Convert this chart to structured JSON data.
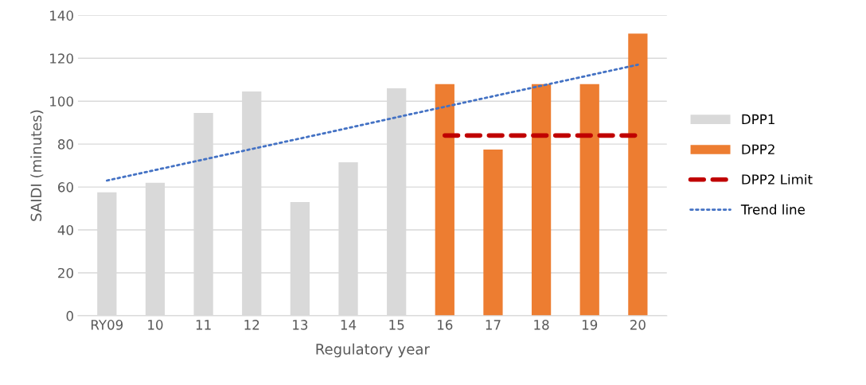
{
  "chart_data": {
    "type": "bar",
    "xlabel": "Regulatory year",
    "ylabel": "SAIDI (minutes)",
    "categories": [
      "RY09",
      "10",
      "11",
      "12",
      "13",
      "14",
      "15",
      "16",
      "17",
      "18",
      "19",
      "20"
    ],
    "series": [
      {
        "name": "DPP1",
        "color": "#d9d9d9",
        "values": [
          57.5,
          62,
          94.5,
          104.5,
          53,
          71.5,
          106,
          null,
          null,
          null,
          null,
          null
        ]
      },
      {
        "name": "DPP2",
        "color": "#ed7d31",
        "values": [
          null,
          null,
          null,
          null,
          null,
          null,
          null,
          108,
          77.5,
          108,
          108,
          131.5
        ]
      },
      {
        "name": "DPP2 Limit",
        "type": "line",
        "color": "#c00000",
        "line_style": "dashed",
        "values": [
          null,
          null,
          null,
          null,
          null,
          null,
          null,
          84,
          84,
          84,
          84,
          84
        ]
      },
      {
        "name": "Trend line",
        "type": "line",
        "color": "#4472c4",
        "line_style": "dotted",
        "values": [
          63,
          67.9,
          72.8,
          77.7,
          82.6,
          87.5,
          92.5,
          97.4,
          102.3,
          107.2,
          112.1,
          117
        ]
      }
    ],
    "ylim": [
      0,
      140
    ],
    "yticks": [
      0,
      20,
      40,
      60,
      80,
      100,
      120,
      140
    ],
    "grid": "y",
    "legend": "right"
  }
}
